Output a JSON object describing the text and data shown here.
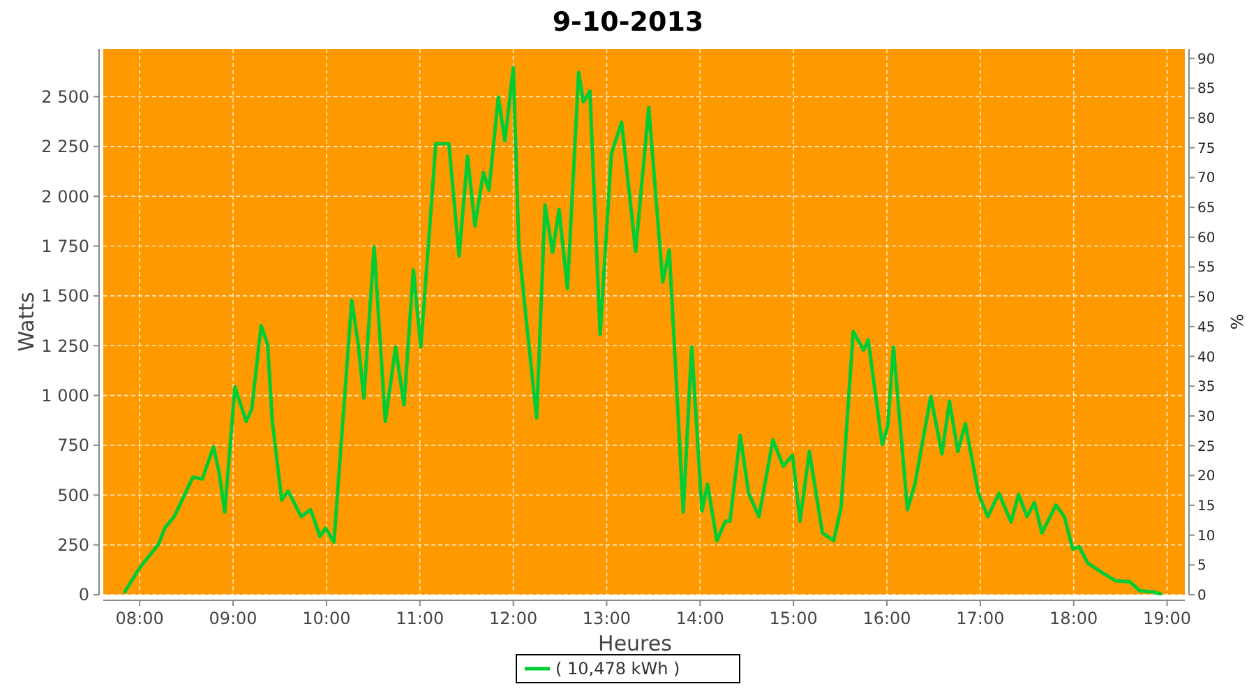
{
  "chart_data": {
    "type": "line",
    "title": "9-10-2013",
    "xlabel": "Heures",
    "ylabel": "Watts",
    "y2label": "%",
    "xlim": [
      7.61,
      19.19
    ],
    "ylim": [
      0,
      2740
    ],
    "y2lim": [
      0,
      91.6
    ],
    "xticks": [
      {
        "value": 8,
        "label": "08:00"
      },
      {
        "value": 9,
        "label": "09:00"
      },
      {
        "value": 10,
        "label": "10:00"
      },
      {
        "value": 11,
        "label": "11:00"
      },
      {
        "value": 12,
        "label": "12:00"
      },
      {
        "value": 13,
        "label": "13:00"
      },
      {
        "value": 14,
        "label": "14:00"
      },
      {
        "value": 15,
        "label": "15:00"
      },
      {
        "value": 16,
        "label": "16:00"
      },
      {
        "value": 17,
        "label": "17:00"
      },
      {
        "value": 18,
        "label": "18:00"
      },
      {
        "value": 19,
        "label": "19:00"
      }
    ],
    "yticks": [
      0,
      250,
      500,
      750,
      {
        "value": 1000,
        "label": "1 000"
      },
      {
        "value": 1250,
        "label": "1 250"
      },
      {
        "value": 1500,
        "label": "1 500"
      },
      {
        "value": 1750,
        "label": "1 750"
      },
      {
        "value": 2000,
        "label": "2 000"
      },
      {
        "value": 2250,
        "label": "2 250"
      },
      {
        "value": 2500,
        "label": "2 500"
      }
    ],
    "y2ticks": [
      0,
      5,
      10,
      15,
      20,
      25,
      30,
      35,
      40,
      45,
      50,
      55,
      60,
      65,
      70,
      75,
      80,
      85,
      90
    ],
    "grid": true,
    "legend": "bottom",
    "marker": "none",
    "line_style": "solid",
    "series": [
      {
        "name": "( 10,478 kWh )",
        "color": "#00cc33",
        "x": [
          7.84,
          8.0,
          8.2,
          8.27,
          8.37,
          8.57,
          8.67,
          8.79,
          8.85,
          8.91,
          9.02,
          9.14,
          9.2,
          9.3,
          9.37,
          9.42,
          9.52,
          9.59,
          9.73,
          9.83,
          9.93,
          9.99,
          10.08,
          10.27,
          10.34,
          10.4,
          10.51,
          10.63,
          10.74,
          10.83,
          10.93,
          11.01,
          11.13,
          11.17,
          11.31,
          11.42,
          11.51,
          11.59,
          11.68,
          11.74,
          11.84,
          11.91,
          12.0,
          12.06,
          12.13,
          12.25,
          12.34,
          12.42,
          12.49,
          12.58,
          12.7,
          12.75,
          12.82,
          12.93,
          13.05,
          13.16,
          13.31,
          13.45,
          13.6,
          13.67,
          13.82,
          13.91,
          14.02,
          14.08,
          14.18,
          14.27,
          14.32,
          14.43,
          14.52,
          14.63,
          14.78,
          14.89,
          14.99,
          15.07,
          15.17,
          15.31,
          15.43,
          15.51,
          15.64,
          15.75,
          15.8,
          15.95,
          16.01,
          16.07,
          16.22,
          16.3,
          16.47,
          16.59,
          16.67,
          16.76,
          16.84,
          16.98,
          17.08,
          17.2,
          17.33,
          17.41,
          17.5,
          17.58,
          17.66,
          17.81,
          17.9,
          17.99,
          18.06,
          18.15,
          18.3,
          18.45,
          18.6,
          18.71,
          18.85,
          18.93
        ],
        "values": [
          14,
          135,
          252,
          336,
          392,
          590,
          581,
          742,
          616,
          415,
          1043,
          870,
          931,
          1351,
          1256,
          870,
          476,
          520,
          392,
          427,
          292,
          334,
          264,
          1478,
          1256,
          987,
          1746,
          870,
          1244,
          952,
          1630,
          1244,
          2003,
          2264,
          2264,
          1700,
          2201,
          1851,
          2119,
          2031,
          2498,
          2278,
          2645,
          1746,
          1419,
          887,
          1956,
          1718,
          1933,
          1536,
          2621,
          2474,
          2528,
          1307,
          2213,
          2372,
          1723,
          2446,
          1571,
          1730,
          415,
          1244,
          420,
          555,
          271,
          369,
          369,
          800,
          509,
          392,
          777,
          644,
          700,
          369,
          719,
          310,
          271,
          439,
          1321,
          1228,
          1279,
          754,
          847,
          1244,
          427,
          555,
          994,
          707,
          971,
          719,
          859,
          509,
          392,
          509,
          364,
          504,
          392,
          462,
          310,
          450,
          392,
          229,
          240,
          159,
          112,
          70,
          65,
          19,
          14,
          5
        ]
      }
    ]
  }
}
